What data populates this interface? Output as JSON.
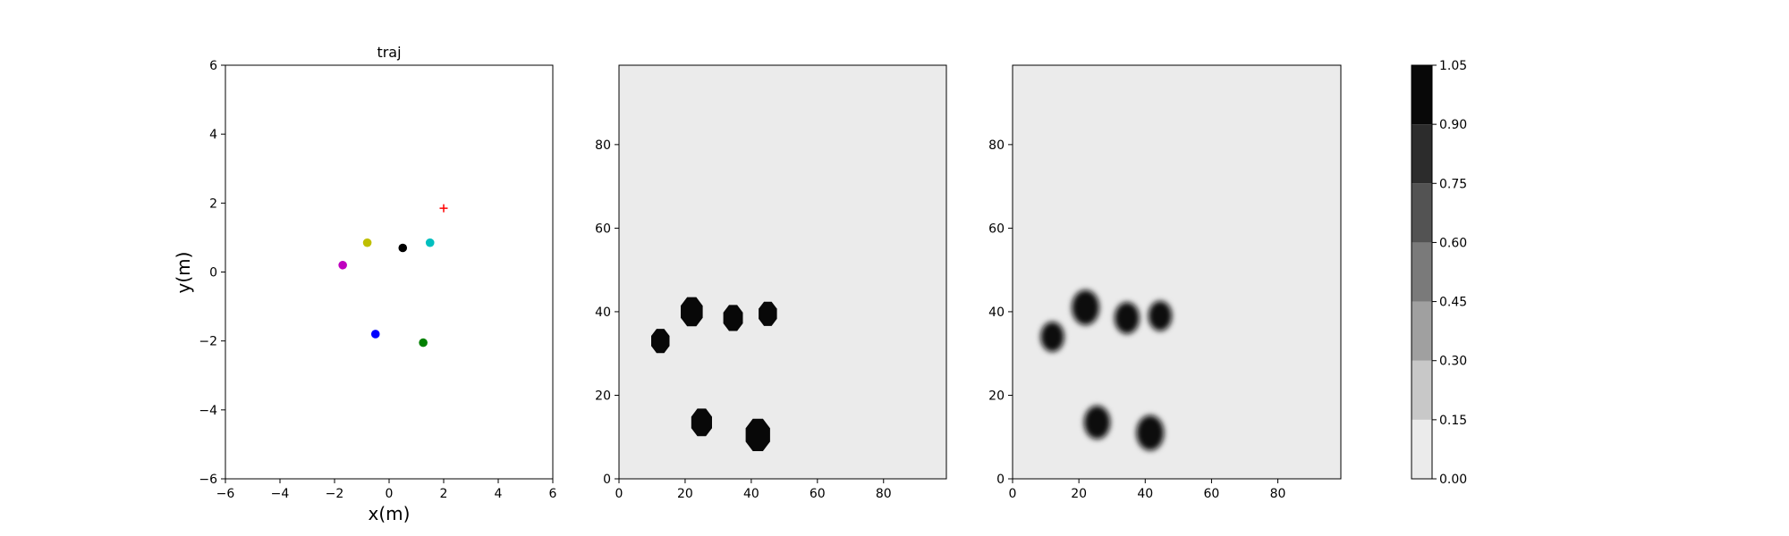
{
  "chart_data": [
    {
      "type": "scatter",
      "title": "traj",
      "xlabel": "x(m)",
      "ylabel": "y(m)",
      "xlim": [
        -6,
        6
      ],
      "ylim": [
        -6,
        6
      ],
      "xticks": [
        -6,
        -4,
        -2,
        0,
        2,
        4,
        6
      ],
      "yticks": [
        -6,
        -4,
        -2,
        0,
        2,
        4,
        6
      ],
      "grid": false,
      "points": [
        {
          "x": 0.5,
          "y": 0.7,
          "color": "#000000",
          "marker": "circle"
        },
        {
          "x": -0.8,
          "y": 0.85,
          "color": "#bfbf00",
          "marker": "circle"
        },
        {
          "x": 1.5,
          "y": 0.85,
          "color": "#00bfbf",
          "marker": "circle"
        },
        {
          "x": -1.7,
          "y": 0.2,
          "color": "#bf00bf",
          "marker": "circle"
        },
        {
          "x": -0.5,
          "y": -1.8,
          "color": "#0000ff",
          "marker": "circle"
        },
        {
          "x": 1.25,
          "y": -2.05,
          "color": "#008000",
          "marker": "circle"
        },
        {
          "x": 2.0,
          "y": 1.85,
          "color": "#ff0000",
          "marker": "plus"
        }
      ]
    },
    {
      "type": "heatmap",
      "xlim": [
        0,
        99
      ],
      "ylim": [
        0,
        99
      ],
      "xticks": [
        0,
        20,
        40,
        60,
        80
      ],
      "yticks": [
        0,
        20,
        40,
        60,
        80
      ],
      "background_value": 0.0,
      "blur": false,
      "blobs": [
        {
          "cx": 12.5,
          "cy": 33,
          "r": 3.0,
          "value": 1.0
        },
        {
          "cx": 22,
          "cy": 40,
          "r": 3.6,
          "value": 1.0
        },
        {
          "cx": 34.5,
          "cy": 38.5,
          "r": 3.2,
          "value": 1.0
        },
        {
          "cx": 45,
          "cy": 39.5,
          "r": 3.0,
          "value": 1.0
        },
        {
          "cx": 25,
          "cy": 13.5,
          "r": 3.4,
          "value": 1.0
        },
        {
          "cx": 42,
          "cy": 10.5,
          "r": 4.0,
          "value": 1.0
        }
      ]
    },
    {
      "type": "heatmap",
      "xlim": [
        0,
        99
      ],
      "ylim": [
        0,
        99
      ],
      "xticks": [
        0,
        20,
        40,
        60,
        80
      ],
      "yticks": [
        0,
        20,
        40,
        60,
        80
      ],
      "background_value": 0.0,
      "blur": true,
      "blobs": [
        {
          "cx": 12,
          "cy": 34,
          "r": 3.0,
          "value": 1.0
        },
        {
          "cx": 22,
          "cy": 41,
          "r": 3.6,
          "value": 1.0
        },
        {
          "cx": 34.5,
          "cy": 38.5,
          "r": 3.2,
          "value": 1.0
        },
        {
          "cx": 44.5,
          "cy": 39,
          "r": 3.0,
          "value": 1.0
        },
        {
          "cx": 25.5,
          "cy": 13.5,
          "r": 3.4,
          "value": 1.0
        },
        {
          "cx": 41.5,
          "cy": 11,
          "r": 3.6,
          "value": 1.0
        }
      ]
    }
  ],
  "colorbar": {
    "levels": [
      0.0,
      0.15,
      0.3,
      0.45,
      0.6,
      0.75,
      0.9,
      1.05
    ],
    "tick_labels": [
      "0.00",
      "0.15",
      "0.30",
      "0.45",
      "0.60",
      "0.75",
      "0.90",
      "1.05"
    ],
    "colors": [
      "#ebebeb",
      "#c8c8c8",
      "#a0a0a0",
      "#7a7a7a",
      "#535353",
      "#2c2c2c",
      "#080808"
    ]
  }
}
